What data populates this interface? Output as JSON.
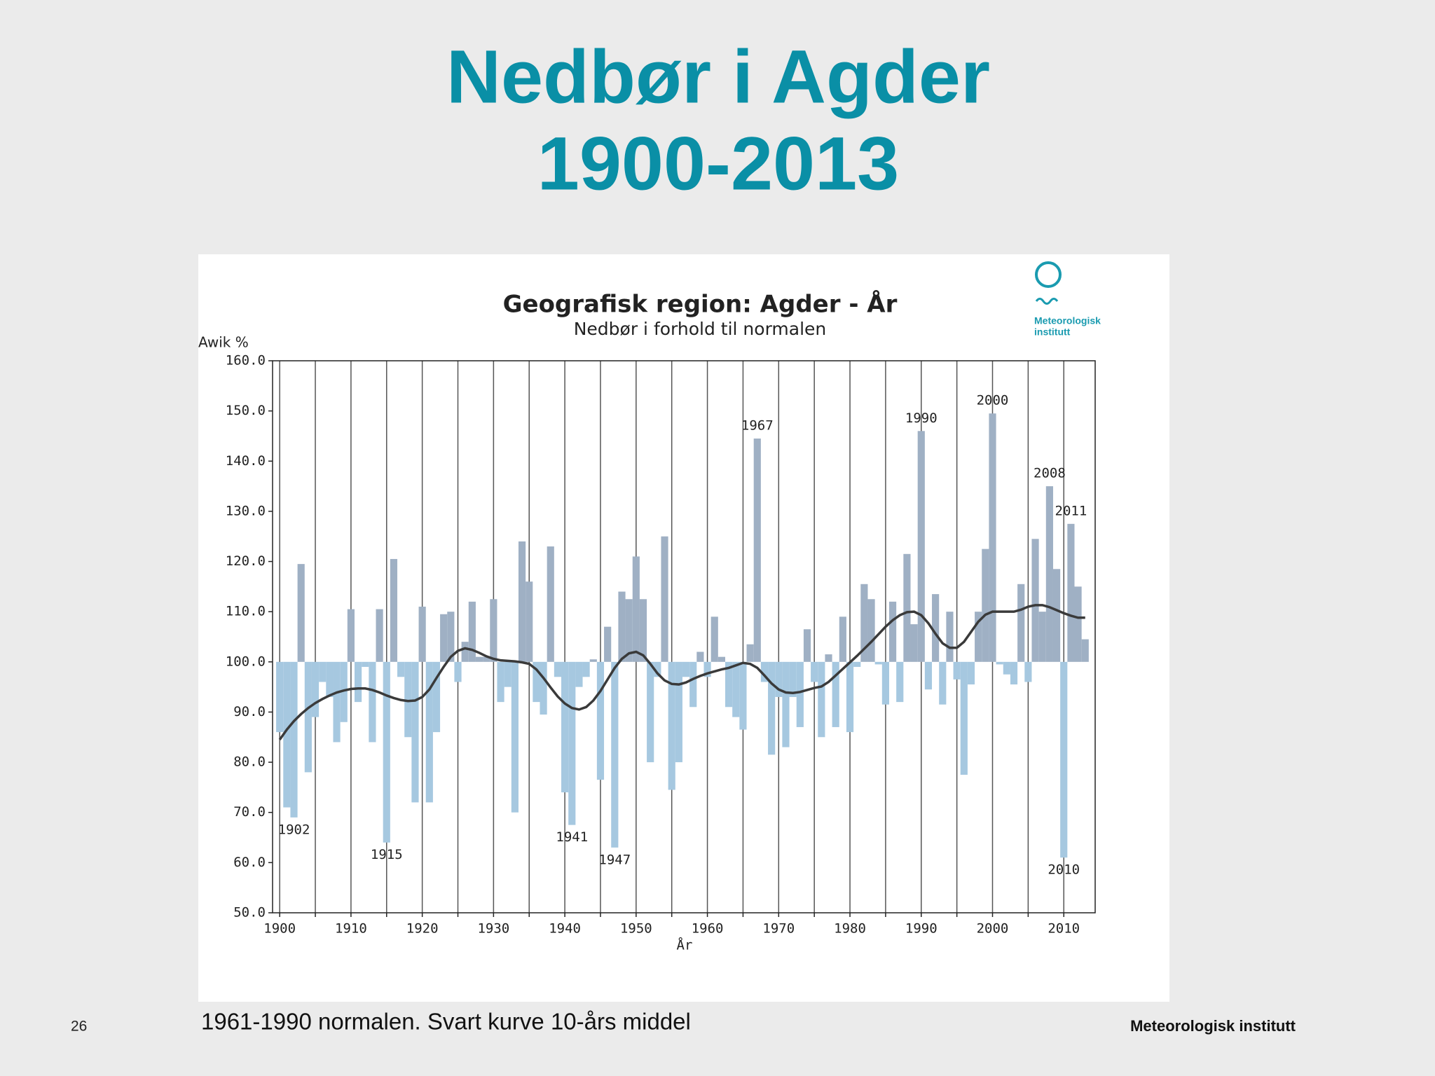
{
  "slide": {
    "title_lines": [
      "Nedbør i Agder",
      "1900-2013"
    ],
    "footnote": "1961-1990 normalen. Svart kurve 10-års middel",
    "page_number": "26",
    "footer": "Meteorologisk institutt"
  },
  "chart_data": {
    "type": "bar",
    "title": "Geografisk region: Agder - År",
    "subtitle": "Nedbør i forhold til normalen",
    "y_label": "Awik %",
    "x_label": "År",
    "logo_text": [
      "Meteorologisk",
      "institutt"
    ],
    "baseline": 100,
    "x": [
      1900,
      1901,
      1902,
      1903,
      1904,
      1905,
      1906,
      1907,
      1908,
      1909,
      1910,
      1911,
      1912,
      1913,
      1914,
      1915,
      1916,
      1917,
      1918,
      1919,
      1920,
      1921,
      1922,
      1923,
      1924,
      1925,
      1926,
      1927,
      1928,
      1929,
      1930,
      1931,
      1932,
      1933,
      1934,
      1935,
      1936,
      1937,
      1938,
      1939,
      1940,
      1941,
      1942,
      1943,
      1944,
      1945,
      1946,
      1947,
      1948,
      1949,
      1950,
      1951,
      1952,
      1953,
      1954,
      1955,
      1956,
      1957,
      1958,
      1959,
      1960,
      1961,
      1962,
      1963,
      1964,
      1965,
      1966,
      1967,
      1968,
      1969,
      1970,
      1971,
      1972,
      1973,
      1974,
      1975,
      1976,
      1977,
      1978,
      1979,
      1980,
      1981,
      1982,
      1983,
      1984,
      1985,
      1986,
      1987,
      1988,
      1989,
      1990,
      1991,
      1992,
      1993,
      1994,
      1995,
      1996,
      1997,
      1998,
      1999,
      2000,
      2001,
      2002,
      2003,
      2004,
      2005,
      2006,
      2007,
      2008,
      2009,
      2010,
      2011,
      2012,
      2013
    ],
    "series": [
      {
        "type": "bar",
        "colors": {
          "above": "#9fb0c4",
          "below": "#a6c8e0"
        },
        "values": [
          86,
          71,
          69,
          119.5,
          78,
          89,
          96,
          93,
          84,
          88,
          110.5,
          92,
          99,
          84,
          110.5,
          64,
          120.5,
          97,
          85,
          72,
          111,
          72,
          86,
          109.5,
          110,
          96,
          104,
          112,
          101,
          101,
          112.5,
          92,
          95,
          70,
          124,
          116,
          92,
          89.5,
          123,
          97,
          74,
          67.5,
          95,
          97,
          100.5,
          76.5,
          107,
          63,
          114,
          112.5,
          121,
          112.5,
          80,
          97,
          125,
          74.5,
          80,
          97,
          91,
          102,
          97,
          109,
          101,
          91,
          89,
          86.5,
          103.5,
          144.5,
          96,
          81.5,
          93,
          83,
          93,
          87,
          106.5,
          96,
          85,
          101.5,
          87,
          109,
          86,
          99,
          115.5,
          112.5,
          99.5,
          91.5,
          112,
          92,
          121.5,
          107.5,
          146,
          94.5,
          113.5,
          91.5,
          110,
          96.5,
          77.5,
          95.5,
          110,
          122.5,
          149.5,
          99.5,
          97.5,
          95.5,
          115.5,
          96,
          124.5,
          110,
          135,
          118.5,
          61,
          127.5,
          115,
          104.5
        ]
      },
      {
        "type": "line",
        "color": "#3a3a3a",
        "values": [
          84.5,
          86.5,
          88.2,
          89.6,
          90.8,
          91.8,
          92.6,
          93.3,
          93.9,
          94.3,
          94.6,
          94.7,
          94.7,
          94.4,
          93.9,
          93.3,
          92.8,
          92.4,
          92.2,
          92.3,
          93,
          94.5,
          96.8,
          99,
          101,
          102.2,
          102.7,
          102.4,
          101.8,
          101.1,
          100.6,
          100.3,
          100.2,
          100.1,
          99.9,
          99.6,
          98.5,
          96.8,
          94.9,
          93.1,
          91.7,
          90.8,
          90.5,
          91,
          92.3,
          94.2,
          96.5,
          98.8,
          100.6,
          101.7,
          102,
          101.3,
          99.6,
          97.7,
          96.3,
          95.6,
          95.5,
          95.9,
          96.6,
          97.2,
          97.7,
          98.1,
          98.5,
          98.8,
          99.3,
          99.8,
          99.6,
          98.8,
          97.3,
          95.7,
          94.5,
          93.9,
          93.8,
          94,
          94.4,
          94.8,
          95.1,
          96,
          97.3,
          98.6,
          99.9,
          101.2,
          102.6,
          104,
          105.5,
          107,
          108.3,
          109.3,
          109.9,
          110,
          109.3,
          107.7,
          105.6,
          103.7,
          102.8,
          102.8,
          104,
          106,
          108,
          109.4,
          110,
          110,
          110,
          110,
          110.4,
          111,
          111.3,
          111.3,
          110.9,
          110.3,
          109.7,
          109.2,
          108.8,
          108.8
        ]
      }
    ],
    "annotations": [
      "1902",
      "1915",
      "1941",
      "1947",
      "1967",
      "1990",
      "2000",
      "2008",
      "2010",
      "2011"
    ],
    "xlim": [
      1899,
      2014.4
    ],
    "ylim": [
      50,
      160
    ],
    "xticks": [
      1900,
      1910,
      1920,
      1930,
      1940,
      1950,
      1960,
      1970,
      1980,
      1990,
      2000,
      2010
    ],
    "xminorticks": [
      1905,
      1915,
      1925,
      1935,
      1945,
      1955,
      1965,
      1975,
      1985,
      1995,
      2005
    ],
    "yticks": [
      {
        "value": 50,
        "label": "50.0"
      },
      {
        "value": 60,
        "label": "60.0"
      },
      {
        "value": 70,
        "label": "70.0"
      },
      {
        "value": 80,
        "label": "80.0"
      },
      {
        "value": 90,
        "label": "90.0"
      },
      {
        "value": 100,
        "label": "100.0"
      },
      {
        "value": 110,
        "label": "110.0"
      },
      {
        "value": 120,
        "label": "120.0"
      },
      {
        "value": 130,
        "label": "130.0"
      },
      {
        "value": 140,
        "label": "140.0"
      },
      {
        "value": 150,
        "label": "150.0"
      },
      {
        "value": 160,
        "label": "160.0"
      }
    ],
    "grid": "x"
  }
}
